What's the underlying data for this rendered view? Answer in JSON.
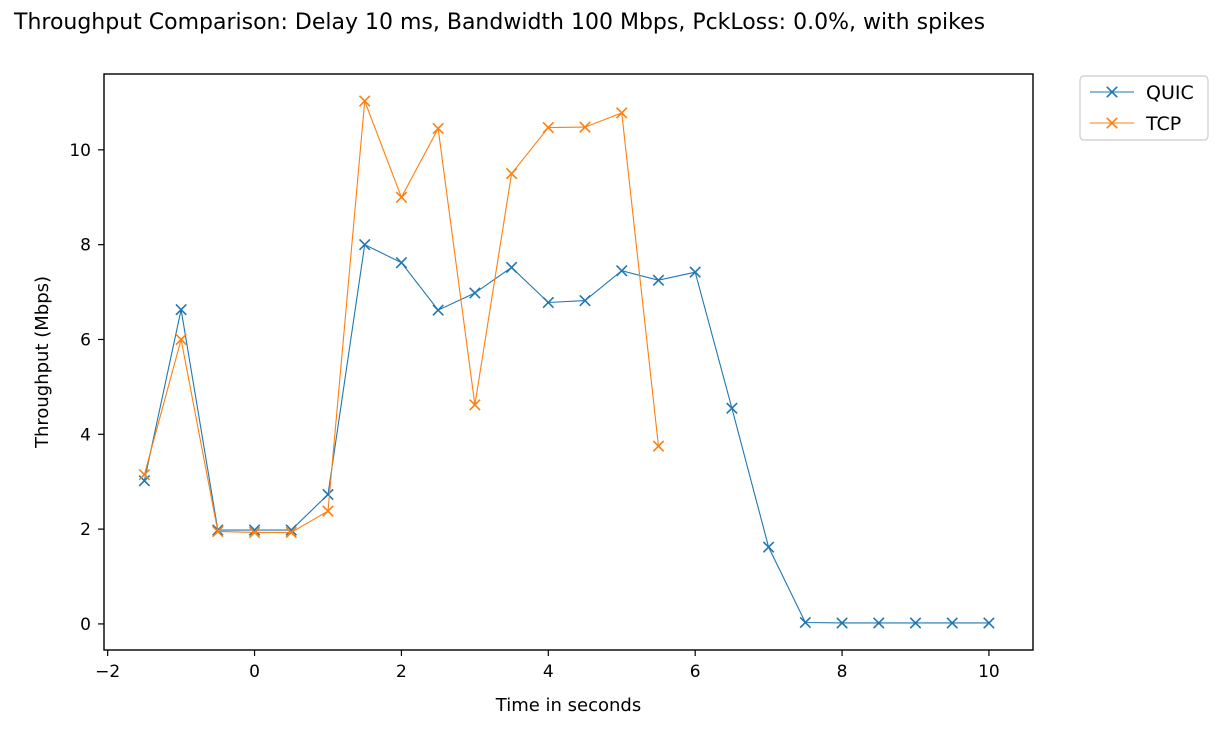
{
  "title": "Throughput Comparison: Delay 10 ms, Bandwidth 100 Mbps, PckLoss: 0.0%, with spikes",
  "colors": {
    "QUIC": "#1f77b4",
    "TCP": "#ff7f0e"
  },
  "chart_data": {
    "type": "line",
    "xlabel": "Time in seconds",
    "ylabel": "Throughput (Mbps)",
    "xlim": [
      -2.05,
      10.6
    ],
    "ylim": [
      -0.55,
      11.6
    ],
    "xticks": [
      -2,
      0,
      2,
      4,
      6,
      8,
      10
    ],
    "yticks": [
      0,
      2,
      4,
      6,
      8,
      10
    ],
    "xtick_labels": [
      "−2",
      "0",
      "2",
      "4",
      "6",
      "8",
      "10"
    ],
    "ytick_labels": [
      "0",
      "2",
      "4",
      "6",
      "8",
      "10"
    ],
    "grid": false,
    "legend": "outside top-right",
    "marker": "x",
    "series": [
      {
        "name": "QUIC",
        "x": [
          -1.5,
          -1.0,
          -0.5,
          0.0,
          0.5,
          1.0,
          1.5,
          2.0,
          2.5,
          3.0,
          3.5,
          4.0,
          4.5,
          5.0,
          5.5,
          6.0,
          6.5,
          7.0,
          7.5,
          8.0,
          8.5,
          9.0,
          9.5,
          10.0
        ],
        "y": [
          3.02,
          6.63,
          1.98,
          1.98,
          1.98,
          2.73,
          8.0,
          7.62,
          6.62,
          6.98,
          7.52,
          6.78,
          6.82,
          7.45,
          7.25,
          7.42,
          4.55,
          1.62,
          0.03,
          0.02,
          0.02,
          0.02,
          0.02,
          0.02
        ]
      },
      {
        "name": "TCP",
        "x": [
          -1.5,
          -1.0,
          -0.5,
          0.0,
          0.5,
          1.0,
          1.5,
          2.0,
          2.5,
          3.0,
          3.5,
          4.0,
          4.5,
          5.0,
          5.5
        ],
        "y": [
          3.15,
          6.0,
          1.95,
          1.93,
          1.93,
          2.38,
          11.03,
          9.0,
          10.45,
          4.62,
          9.5,
          10.47,
          10.48,
          10.78,
          3.75
        ]
      }
    ]
  }
}
